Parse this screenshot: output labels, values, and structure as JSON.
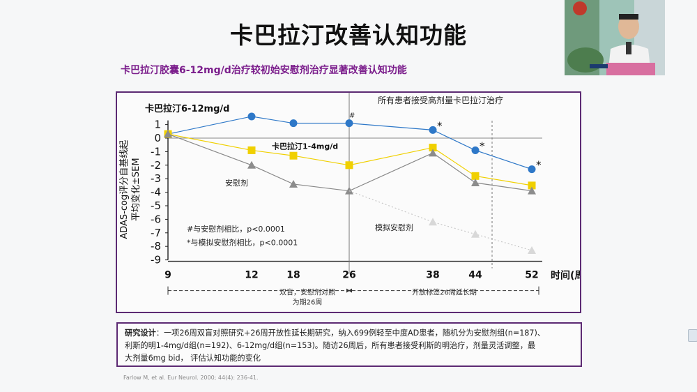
{
  "slide": {
    "title": "卡巴拉汀改善认知功能",
    "subtitle": "卡巴拉汀胶囊6-12mg/d治疗较初始安慰剂治疗显著改善认知功能"
  },
  "chart_data": {
    "type": "line",
    "ylabel_line1": "ADAS-cog评分自基线起",
    "ylabel_line2": "平均变化±SEM",
    "xlabel": "时间(周)",
    "x": [
      9,
      12,
      18,
      26,
      38,
      44,
      52
    ],
    "ylim": [
      -9,
      1
    ],
    "yticks": [
      1,
      0,
      -1,
      -2,
      -3,
      -4,
      -5,
      -6,
      -7,
      -8,
      -9
    ],
    "series": [
      {
        "name": "卡巴拉汀6-12mg/d",
        "color": "#2e78c8",
        "marker": "circle",
        "x": [
          9,
          12,
          18,
          26,
          38,
          44,
          52
        ],
        "y": [
          0.3,
          1.6,
          1.1,
          1.1,
          0.6,
          -0.9,
          -2.3
        ]
      },
      {
        "name": "卡巴拉汀1-4mg/d",
        "color": "#f0d000",
        "marker": "square",
        "x": [
          9,
          12,
          18,
          26,
          38,
          44,
          52
        ],
        "y": [
          0.3,
          -0.9,
          -1.3,
          -2.0,
          -0.7,
          -2.8,
          -3.5
        ]
      },
      {
        "name": "安慰剂",
        "color": "#888888",
        "marker": "triangle",
        "x": [
          9,
          12,
          18,
          26,
          38,
          44,
          52
        ],
        "y": [
          0.3,
          -2.0,
          -3.4,
          -3.9,
          -1.1,
          -3.3,
          -3.9
        ]
      },
      {
        "name": "模拟安慰剂",
        "color": "#c8c8c8",
        "marker": "triangle",
        "x": [
          26,
          38,
          44,
          52
        ],
        "y": [
          -3.9,
          -6.2,
          -7.1,
          -8.3
        ]
      }
    ],
    "significance": [
      {
        "symbol": "#",
        "x": 26,
        "y": 1.1
      },
      {
        "symbol": "*",
        "x": 38,
        "y": 0.6
      },
      {
        "symbol": "*",
        "x": 44,
        "y": -0.9
      },
      {
        "symbol": "*",
        "x": 52,
        "y": -2.3
      }
    ],
    "footnotes": [
      "#与安慰剂相比，p<0.0001",
      "*与模拟安慰剂相比，p<0.0001"
    ],
    "period_top_label": "所有患者接受高剂量卡巴拉汀治疗",
    "phase1": {
      "label_line1": "双盲，安慰剂对照",
      "label_line2": "为期26周",
      "from": 9,
      "to": 26
    },
    "phase2": {
      "label": "开放标签26周延长期",
      "from": 26,
      "to": 52
    }
  },
  "study": {
    "label": "研究设计",
    "line1": "：一项26周双盲对照研究+26周开放性延长期研究，纳入699例轻至中度AD患者，随机分为安慰剂组(n=187)、",
    "line2": "利斯的明1-4mg/d组(n=192)、6-12mg/d组(n=153)。随访26周后，所有患者接受利斯的明治疗，剂量灵活调整，最",
    "line3": "大剂量6mg bid， 评估认知功能的变化"
  },
  "reference": "Farlow M, et al. Eur Neurol. 2000; 44(4): 236-41."
}
